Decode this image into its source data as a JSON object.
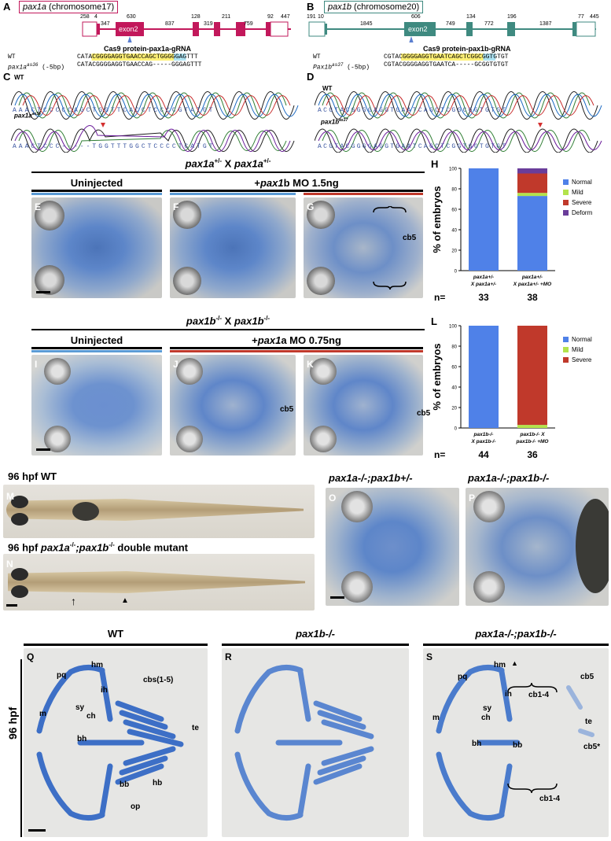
{
  "panels": {
    "A": "A",
    "B": "B",
    "C": "C",
    "D": "D",
    "E": "E",
    "F": "F",
    "G": "G",
    "H": "H",
    "I": "I",
    "J": "J",
    "K": "K",
    "L": "L",
    "M": "M",
    "N": "N",
    "O": "O",
    "P": "P",
    "Q": "Q",
    "R": "R",
    "S": "S"
  },
  "geneA": {
    "name": "pax1a",
    "chrom": "(chromosome17)",
    "exon_label": "exon2",
    "nums": [
      "258",
      "4",
      "347",
      "630",
      "837",
      "128",
      "319",
      "211",
      "759",
      "92",
      "447"
    ],
    "cas9": "Cas9 protein-pax1a-gRNA",
    "wt_label": "WT",
    "wt_seq": "CATACGGGGAGGTGAACCAGCTGGGGGAGTTT",
    "mut_label": "pax1a",
    "mut_sup": "as36",
    "mut_del": "(-5bp)",
    "mut_seq": "CATACGGGGAGGTGAACCAG-----GGGAGTTT"
  },
  "geneB": {
    "name": "pax1b",
    "chrom": "(chromosome20)",
    "exon_label": "exon2",
    "nums": [
      "191",
      "10",
      "1845",
      "606",
      "749",
      "134",
      "772",
      "196",
      "1387",
      "77",
      "445"
    ],
    "cas9": "Cas9 protein-pax1b-gRNA",
    "wt_label": "WT",
    "wt_seq": "CGTACGGGGAGGTGAATCAGCTCGGCGGTGTGT",
    "mut_label": "Pax1b",
    "mut_sup": "as37",
    "mut_del": "(-5bp)",
    "mut_seq": "CGTACGGGGAGGTGAATCA-----GCGGTGTGT"
  },
  "chromC": {
    "wt": "WT",
    "mut": "pax1a",
    "mut_sup": "as36",
    "wt_bases": "AAACTCCCCCAGCTGGTTCACCTCCCCGTATGT",
    "mut_bases": "AAACTCCC-----TGGTTTGGCTCCCCTCATGT"
  },
  "chromD": {
    "wt": "WT",
    "mut": "pax1b",
    "mut_sup": "as37",
    "wt_bases": "ACGTACGGGGAGGTGAATCAGCTCGGCGGTGTGT",
    "mut_bases": "ACGTACGGGGAGGTGAATCAGCTCGGTGGTGTGT"
  },
  "rowE": {
    "header": "pax1a+/- X pax1a+/-",
    "h1": "pax1a",
    "h1sup": "+/-",
    "hx": " X ",
    "h2": "pax1a",
    "h2sup": "+/-",
    "uninjected": "Uninjected",
    "mo": "+pax1b MO 1.5ng",
    "cb5": "cb5"
  },
  "rowI": {
    "h1": "pax1b",
    "h1sup": "-/-",
    "hx": " X ",
    "h2": "pax1b",
    "h2sup": "-/-",
    "uninjected": "Uninjected",
    "mo": "+pax1a MO 0.75ng",
    "cb5": "cb5"
  },
  "chart_H": {
    "type": "bar",
    "ylabel": "% of embryos",
    "ylim": [
      0,
      100
    ],
    "yticks": [
      "0",
      "20",
      "40",
      "60",
      "80",
      "100"
    ],
    "categories": [
      "pax1a+/- X pax1a+/-",
      "pax1a+/- X pax1a+/- +MO"
    ],
    "cat_lines": [
      [
        "pax1a+/-",
        "X pax1a+/-"
      ],
      [
        "pax1a+/-",
        "X pax1a+/- +MO"
      ]
    ],
    "n_label": "n=",
    "n": [
      "33",
      "38"
    ],
    "series": [
      {
        "name": "Normal",
        "color": "#4f81e8",
        "values": [
          100,
          73
        ]
      },
      {
        "name": "Mild",
        "color": "#b3e34c",
        "values": [
          0,
          3
        ]
      },
      {
        "name": "Severe",
        "color": "#c0392b",
        "values": [
          0,
          19
        ]
      },
      {
        "name": "Deform",
        "color": "#6a3d9a",
        "values": [
          0,
          5
        ]
      }
    ]
  },
  "chart_L": {
    "type": "bar",
    "ylabel": "% of embryos",
    "ylim": [
      0,
      100
    ],
    "yticks": [
      "0",
      "20",
      "40",
      "60",
      "80",
      "100"
    ],
    "categories": [
      "pax1b-/- X pax1b-/-",
      "pax1b-/- X pax1b-/- +MO"
    ],
    "cat_lines": [
      [
        "pax1b-/-",
        "X pax1b-/-"
      ],
      [
        "pax1b-/- X",
        "pax1b-/- +MO"
      ]
    ],
    "n_label": "n=",
    "n": [
      "44",
      "36"
    ],
    "series": [
      {
        "name": "Normal",
        "color": "#4f81e8",
        "values": [
          100,
          0
        ]
      },
      {
        "name": "Mild",
        "color": "#b3e34c",
        "values": [
          0,
          3
        ]
      },
      {
        "name": "Severe",
        "color": "#c0392b",
        "values": [
          0,
          97
        ]
      }
    ]
  },
  "rowM": {
    "m_title": "96 hpf WT",
    "n_title_a": "96 hpf ",
    "n_title_b": "pax1a",
    "n_title_bsup": "-/-",
    "n_title_c": ";pax1b",
    "n_title_csup": "-/-",
    "n_title_d": " double mutant",
    "o_title": "pax1a-/-;pax1b+/-",
    "p_title": "pax1a-/-;pax1b-/-"
  },
  "rowQ": {
    "side": "96 hpf",
    "q_title": "WT",
    "r_title": "pax1b-/-",
    "s_title": "pax1a-/-;pax1b-/-",
    "q_labels": [
      "hm",
      "pq",
      "ih",
      "cbs(1-5)",
      "sy",
      "ch",
      "m",
      "bh",
      "te",
      "bb",
      "hb",
      "op"
    ],
    "s_labels": [
      "hm",
      "pq",
      "ih",
      "sy",
      "cb1-4",
      "cb5",
      "te",
      "ch",
      "m",
      "bh",
      "bb",
      "cb5*",
      "cb1-4"
    ]
  }
}
